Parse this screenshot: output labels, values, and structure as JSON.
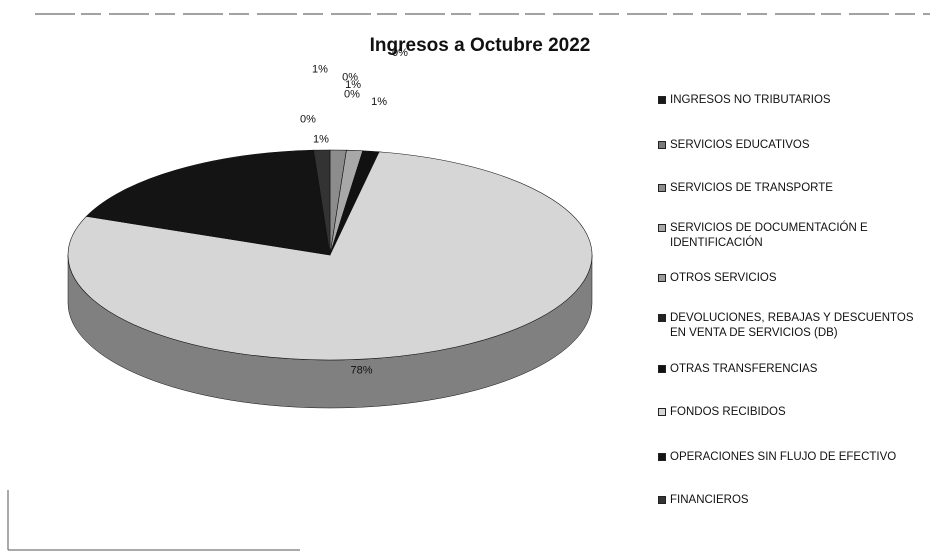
{
  "chart_data": {
    "type": "pie",
    "title": "Ingresos a Octubre 2022",
    "categories": [
      "INGRESOS NO TRIBUTARIOS",
      "SERVICIOS EDUCATIVOS",
      "SERVICIOS DE TRANSPORTE",
      "SERVICIOS DE DOCUMENTACIÓN E IDENTIFICACIÓN",
      "OTROS SERVICIOS",
      "DEVOLUCIONES, REBAJAS Y DESCUENTOS EN VENTA DE SERVICIOS (DB)",
      "OTRAS TRANSFERENCIAS",
      "FONDOS RECIBIDOS",
      "OPERACIONES SIN FLUJO DE EFECTIVO",
      "FINANCIEROS"
    ],
    "values": [
      0,
      0,
      1,
      1,
      0,
      0,
      1,
      78,
      18,
      1
    ],
    "value_labels": [
      "0%",
      "0%",
      "1%",
      "1%",
      "0%",
      "0%",
      "1%",
      "78%",
      null,
      "1%"
    ],
    "colors": [
      "#1a1a1a",
      "#7a7a7a",
      "#8c8c8c",
      "#a8a8a8",
      "#9a9a9a",
      "#222222",
      "#111111",
      "#d6d6d6",
      "#141414",
      "#333333"
    ],
    "legend": "right"
  }
}
